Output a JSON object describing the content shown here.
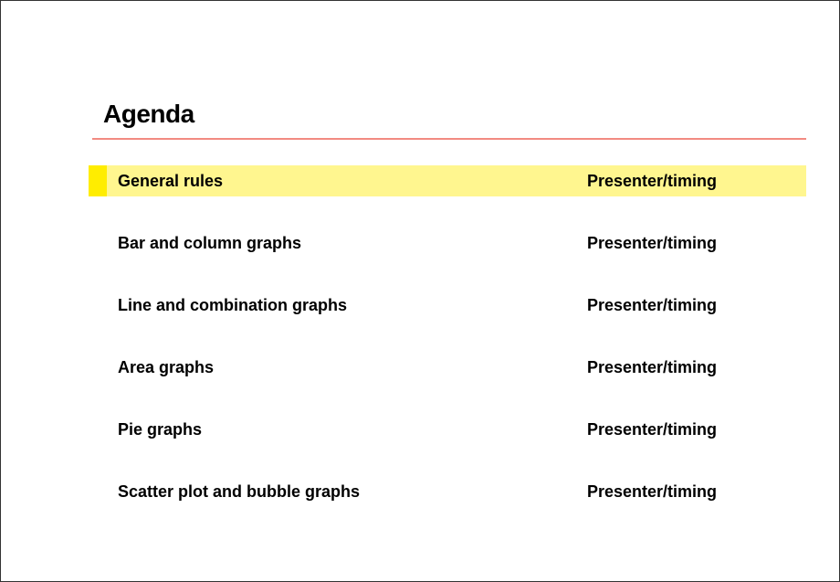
{
  "slide": {
    "title": "Agenda",
    "rule_color": "#f28b82",
    "highlight_bullet_color": "#ffed00",
    "highlight_row_color": "#fff68f",
    "font_family": "Arial",
    "title_fontsize": 28,
    "row_fontsize": 18,
    "active_index": 0,
    "items": [
      {
        "topic": "General rules",
        "meta": "Presenter/timing"
      },
      {
        "topic": "Bar and column graphs",
        "meta": "Presenter/timing"
      },
      {
        "topic": "Line and combination graphs",
        "meta": "Presenter/timing"
      },
      {
        "topic": "Area graphs",
        "meta": "Presenter/timing"
      },
      {
        "topic": "Pie graphs",
        "meta": "Presenter/timing"
      },
      {
        "topic": "Scatter plot and bubble graphs",
        "meta": "Presenter/timing"
      }
    ]
  }
}
